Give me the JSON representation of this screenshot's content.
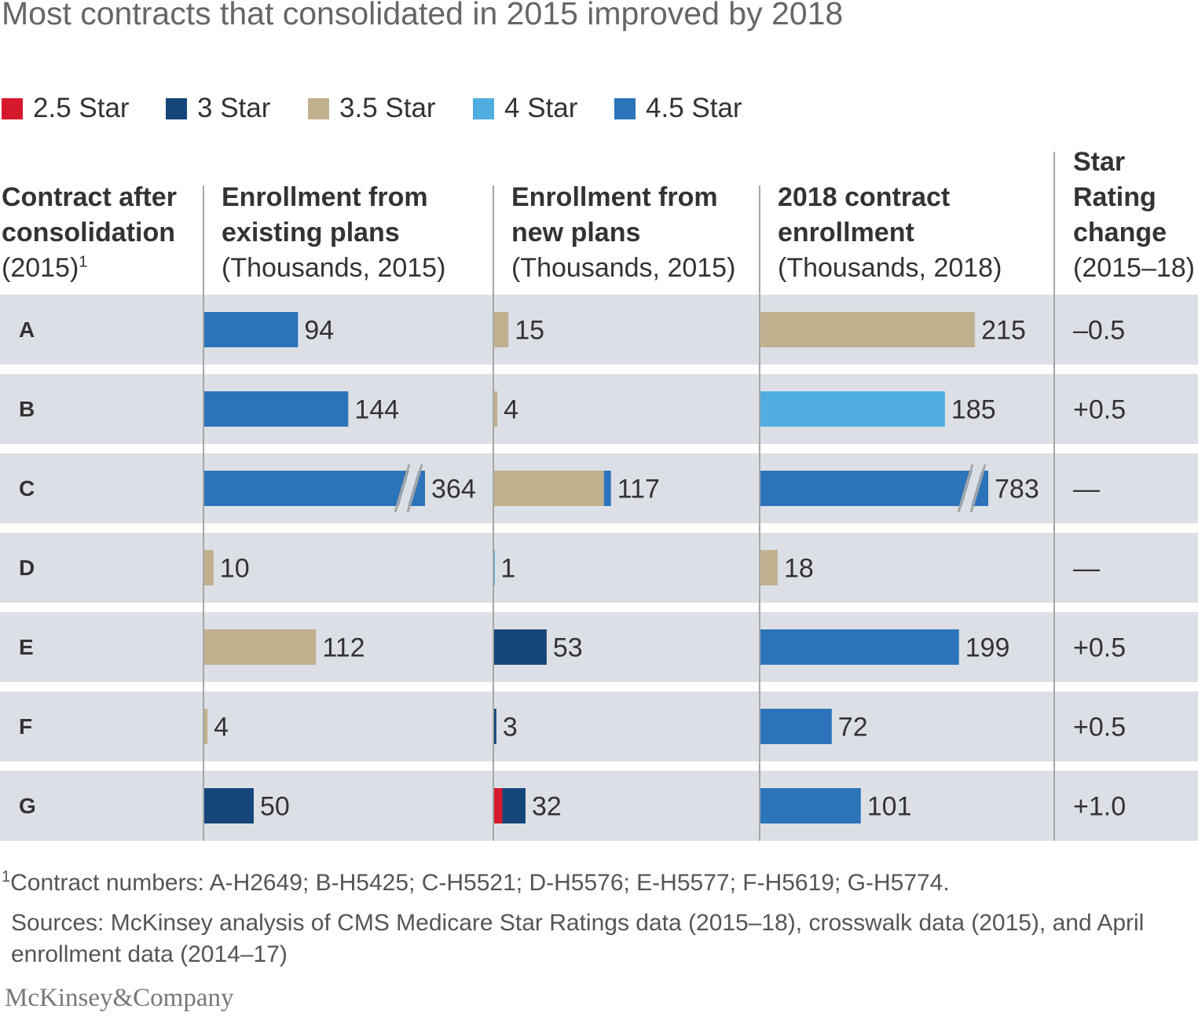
{
  "title": "Most contracts that consolidated in 2015 improved by 2018",
  "colors": {
    "star_2_5": "#d7192d",
    "star_3": "#14467a",
    "star_3_5": "#c0b08e",
    "star_4": "#4fade0",
    "star_4_5": "#2c74ba",
    "row_bg": "#dce0e6",
    "break_mark": "#a6a6a6"
  },
  "legend": [
    {
      "label": "2.5 Star",
      "color": "#d7192d"
    },
    {
      "label": "3 Star",
      "color": "#14467a"
    },
    {
      "label": "3.5 Star",
      "color": "#c0b08e"
    },
    {
      "label": "4 Star",
      "color": "#4fade0"
    },
    {
      "label": "4.5 Star",
      "color": "#2c74ba"
    }
  ],
  "headers": {
    "contract": {
      "line1": "Contract after",
      "line2": "consolidation",
      "sub": "(2015)",
      "sup": "1"
    },
    "existing": {
      "line1": "Enrollment from",
      "line2": "existing plans",
      "sub": "(Thousands, 2015)"
    },
    "new": {
      "line1": "Enrollment from",
      "line2": "new plans",
      "sub": "(Thousands, 2015)"
    },
    "enroll2018": {
      "line1": "2018 contract",
      "line2": "enrollment",
      "sub": "(Thousands, 2018)"
    },
    "change": {
      "line1": "Star",
      "line2": "Rating",
      "line3": "change",
      "sub": "(2015–18)"
    }
  },
  "chart_data": {
    "type": "bar",
    "orientation": "horizontal",
    "stacked": true,
    "categories": [
      "A",
      "B",
      "C",
      "D",
      "E",
      "F",
      "G"
    ],
    "panels": [
      {
        "key": "existing",
        "rows": [
          {
            "label": "94",
            "segments": [
              {
                "star": "4.5",
                "value": 94
              }
            ]
          },
          {
            "label": "144",
            "segments": [
              {
                "star": "4.5",
                "value": 144
              }
            ]
          },
          {
            "label": "364",
            "axis_break": true,
            "segments": [
              {
                "star": "4.5",
                "value": 364
              }
            ]
          },
          {
            "label": "10",
            "segments": [
              {
                "star": "3.5",
                "value": 10
              }
            ]
          },
          {
            "label": "112",
            "segments": [
              {
                "star": "3.5",
                "value": 112
              }
            ]
          },
          {
            "label": "4",
            "segments": [
              {
                "star": "3.5",
                "value": 4
              }
            ]
          },
          {
            "label": "50",
            "segments": [
              {
                "star": "3",
                "value": 50
              }
            ]
          }
        ]
      },
      {
        "key": "new",
        "rows": [
          {
            "label": "15",
            "segments": [
              {
                "star": "3.5",
                "value": 15
              }
            ]
          },
          {
            "label": "4",
            "segments": [
              {
                "star": "3.5",
                "value": 4
              }
            ]
          },
          {
            "label": "117",
            "segments": [
              {
                "star": "3.5",
                "value": 110
              },
              {
                "star": "4.5",
                "value": 7
              }
            ]
          },
          {
            "label": "1",
            "segments": [
              {
                "star": "4",
                "value": 1
              }
            ]
          },
          {
            "label": "53",
            "segments": [
              {
                "star": "3",
                "value": 53
              }
            ]
          },
          {
            "label": "3",
            "segments": [
              {
                "star": "3",
                "value": 3
              }
            ]
          },
          {
            "label": "32",
            "segments": [
              {
                "star": "2.5",
                "value": 9
              },
              {
                "star": "3",
                "value": 23
              }
            ]
          }
        ]
      },
      {
        "key": "enroll2018",
        "rows": [
          {
            "label": "215",
            "segments": [
              {
                "star": "3.5",
                "value": 215
              }
            ]
          },
          {
            "label": "185",
            "segments": [
              {
                "star": "4",
                "value": 185
              }
            ]
          },
          {
            "label": "783",
            "axis_break": true,
            "segments": [
              {
                "star": "4.5",
                "value": 783
              }
            ]
          },
          {
            "label": "18",
            "segments": [
              {
                "star": "3.5",
                "value": 18
              }
            ]
          },
          {
            "label": "199",
            "segments": [
              {
                "star": "4.5",
                "value": 199
              }
            ]
          },
          {
            "label": "72",
            "segments": [
              {
                "star": "4.5",
                "value": 72
              }
            ]
          },
          {
            "label": "101",
            "segments": [
              {
                "star": "4.5",
                "value": 101
              }
            ]
          }
        ]
      }
    ],
    "star_rating_change": [
      "–0.5",
      "+0.5",
      "—",
      "—",
      "+0.5",
      "+0.5",
      "+1.0"
    ]
  },
  "footnote": {
    "sup": "1",
    "text": "Contract numbers: A-H2649; B-H5425; C-H5521; D-H5576; E-H5577; F-H5619; G-H5774."
  },
  "sources": "Sources: McKinsey analysis of CMS Medicare Star Ratings data (2015–18), crosswalk data (2015), and April enrollment data (2014–17)",
  "logo": "McKinsey&Company"
}
